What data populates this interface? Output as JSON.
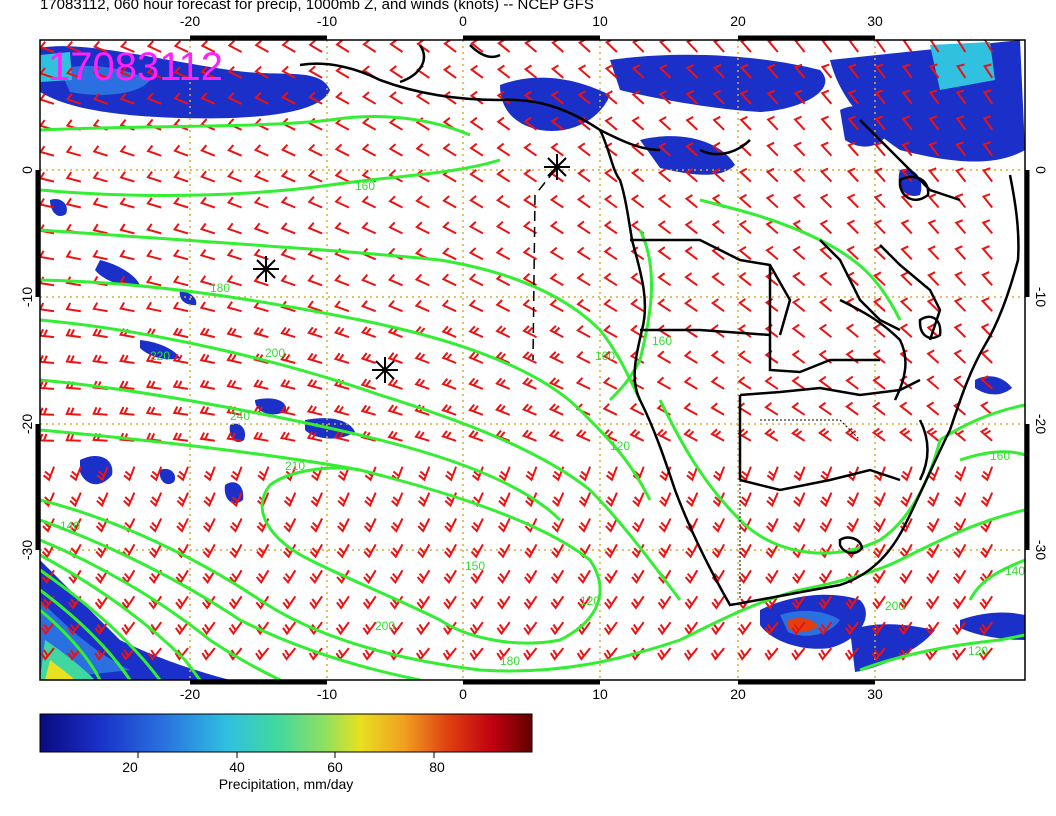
{
  "title": "17083112, 060 hour forecast for precip, 1000mb Z, and winds (knots) -- NCEP GFS",
  "date_stamp": "17083112",
  "axes": {
    "lon_ticks": [
      "-20",
      "-10",
      "0",
      "10",
      "20",
      "30"
    ],
    "lat_ticks": [
      "0",
      "-10",
      "-20",
      "-30"
    ],
    "lon_values": [
      -20,
      -10,
      0,
      10,
      20,
      30
    ],
    "lat_values": [
      0,
      -10,
      -20,
      -30
    ],
    "lon_range": [
      -30,
      41
    ],
    "lat_range": [
      -41,
      10
    ]
  },
  "colorbar": {
    "label": "Precipitation, mm/day",
    "ticks": [
      "20",
      "40",
      "60",
      "80"
    ],
    "tick_values": [
      20,
      40,
      60,
      80
    ],
    "range": [
      0,
      100
    ],
    "colors": [
      "#0a0a80",
      "#1a30c8",
      "#2a70e0",
      "#30c0e0",
      "#40d8a0",
      "#90e060",
      "#e8e020",
      "#f0a020",
      "#e04010",
      "#c00010",
      "#600000"
    ]
  },
  "contour_labels": [
    "160",
    "180",
    "200",
    "220",
    "240",
    "210",
    "150",
    "120",
    "140",
    "200",
    "180",
    "160",
    "120",
    "160",
    "200",
    "120",
    "160",
    "140"
  ],
  "colors": {
    "contour": "#33ee33",
    "wind": "#ee1111",
    "grid": "#d4b030",
    "coast": "#000000",
    "stamp": "#ff22ff"
  }
}
